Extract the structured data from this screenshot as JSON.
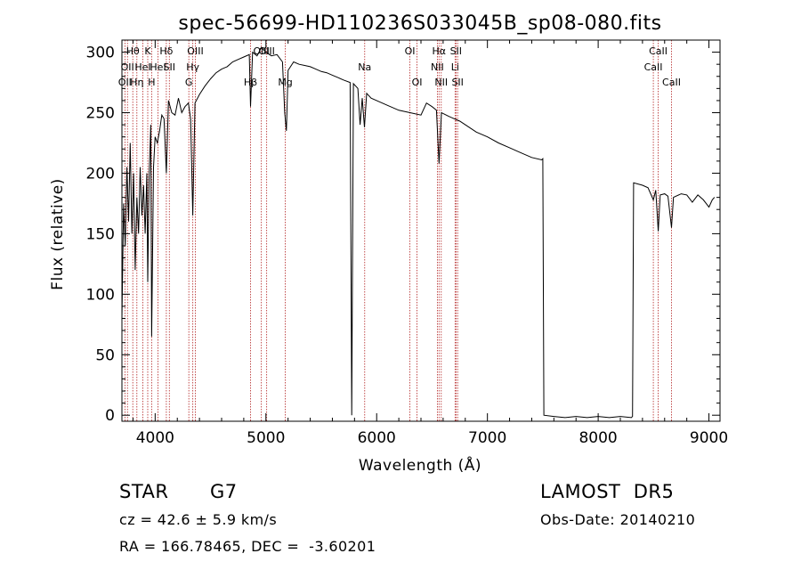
{
  "chart_data": {
    "type": "line",
    "title": "spec-56699-HD110236S033045B_sp08-080.fits",
    "xlabel": "Wavelength (Å)",
    "ylabel": "Flux (relative)",
    "xlim": [
      3700,
      9100
    ],
    "ylim": [
      -5,
      310
    ],
    "xticks": [
      4000,
      5000,
      6000,
      7000,
      8000,
      9000
    ],
    "xtick_labels": [
      "4000",
      "5000",
      "6000",
      "7000",
      "8000",
      "9000"
    ],
    "yticks": [
      0,
      50,
      100,
      150,
      200,
      250,
      300
    ],
    "ytick_labels": [
      "0",
      "50",
      "100",
      "150",
      "200",
      "250",
      "300"
    ],
    "grid": false,
    "line_color": "#000000",
    "marker_color": "#b22222",
    "series": [
      {
        "values": [
          [
            3700,
            80
          ],
          [
            3715,
            175
          ],
          [
            3730,
            140
          ],
          [
            3745,
            205
          ],
          [
            3760,
            160
          ],
          [
            3775,
            225
          ],
          [
            3790,
            150
          ],
          [
            3805,
            200
          ],
          [
            3820,
            120
          ],
          [
            3835,
            180
          ],
          [
            3850,
            150
          ],
          [
            3865,
            205
          ],
          [
            3880,
            165
          ],
          [
            3895,
            190
          ],
          [
            3910,
            150
          ],
          [
            3925,
            200
          ],
          [
            3933,
            110
          ],
          [
            3945,
            195
          ],
          [
            3960,
            240
          ],
          [
            3968,
            65
          ],
          [
            3985,
            205
          ],
          [
            4000,
            230
          ],
          [
            4020,
            225
          ],
          [
            4040,
            235
          ],
          [
            4060,
            248
          ],
          [
            4080,
            245
          ],
          [
            4101,
            200
          ],
          [
            4120,
            260
          ],
          [
            4150,
            250
          ],
          [
            4180,
            248
          ],
          [
            4210,
            262
          ],
          [
            4240,
            250
          ],
          [
            4270,
            255
          ],
          [
            4300,
            258
          ],
          [
            4320,
            245
          ],
          [
            4340,
            165
          ],
          [
            4360,
            258
          ],
          [
            4400,
            265
          ],
          [
            4450,
            272
          ],
          [
            4500,
            278
          ],
          [
            4550,
            283
          ],
          [
            4600,
            286
          ],
          [
            4650,
            288
          ],
          [
            4700,
            292
          ],
          [
            4750,
            294
          ],
          [
            4800,
            296
          ],
          [
            4850,
            298
          ],
          [
            4861,
            255
          ],
          [
            4880,
            300
          ],
          [
            4920,
            297
          ],
          [
            4960,
            304
          ],
          [
            5000,
            300
          ],
          [
            5050,
            297
          ],
          [
            5100,
            298
          ],
          [
            5150,
            292
          ],
          [
            5170,
            250
          ],
          [
            5185,
            235
          ],
          [
            5200,
            285
          ],
          [
            5250,
            292
          ],
          [
            5300,
            290
          ],
          [
            5350,
            289
          ],
          [
            5400,
            288
          ],
          [
            5450,
            286
          ],
          [
            5500,
            284
          ],
          [
            5550,
            283
          ],
          [
            5600,
            281
          ],
          [
            5650,
            279
          ],
          [
            5700,
            277
          ],
          [
            5760,
            275
          ],
          [
            5775,
            0
          ],
          [
            5790,
            274
          ],
          [
            5830,
            270
          ],
          [
            5850,
            240
          ],
          [
            5870,
            262
          ],
          [
            5890,
            238
          ],
          [
            5910,
            266
          ],
          [
            5950,
            262
          ],
          [
            6000,
            260
          ],
          [
            6100,
            256
          ],
          [
            6200,
            252
          ],
          [
            6300,
            250
          ],
          [
            6400,
            248
          ],
          [
            6450,
            258
          ],
          [
            6500,
            255
          ],
          [
            6540,
            252
          ],
          [
            6563,
            208
          ],
          [
            6585,
            250
          ],
          [
            6650,
            247
          ],
          [
            6700,
            245
          ],
          [
            6750,
            243
          ],
          [
            6800,
            240
          ],
          [
            6900,
            234
          ],
          [
            7000,
            230
          ],
          [
            7100,
            225
          ],
          [
            7200,
            221
          ],
          [
            7300,
            217
          ],
          [
            7400,
            213
          ],
          [
            7490,
            211
          ],
          [
            7500,
            212
          ],
          [
            7510,
            0
          ],
          [
            7600,
            -1
          ],
          [
            7700,
            -2
          ],
          [
            7800,
            -1
          ],
          [
            7900,
            -2
          ],
          [
            8000,
            -1
          ],
          [
            8100,
            -2
          ],
          [
            8200,
            -1
          ],
          [
            8300,
            -2
          ],
          [
            8310,
            -1
          ],
          [
            8320,
            192
          ],
          [
            8400,
            190
          ],
          [
            8450,
            188
          ],
          [
            8498,
            178
          ],
          [
            8520,
            186
          ],
          [
            8542,
            152
          ],
          [
            8560,
            182
          ],
          [
            8600,
            183
          ],
          [
            8630,
            181
          ],
          [
            8662,
            155
          ],
          [
            8680,
            180
          ],
          [
            8750,
            183
          ],
          [
            8800,
            182
          ],
          [
            8850,
            176
          ],
          [
            8900,
            182
          ],
          [
            8950,
            178
          ],
          [
            9000,
            172
          ],
          [
            9030,
            178
          ],
          [
            9050,
            180
          ]
        ]
      }
    ],
    "lines": [
      {
        "wave": 3727,
        "label": "OII",
        "row": 2
      },
      {
        "wave": 3750,
        "label": "OII",
        "row": 1
      },
      {
        "wave": 3798,
        "label": "Hθ",
        "row": 0
      },
      {
        "wave": 3835,
        "label": "Hη",
        "row": 2
      },
      {
        "wave": 3889,
        "label": "HeI",
        "row": 1
      },
      {
        "wave": 3933,
        "label": "K",
        "row": 0
      },
      {
        "wave": 3968,
        "label": "H",
        "row": 2
      },
      {
        "wave": 4026,
        "label": "HeI",
        "row": 1
      },
      {
        "wave": 4101,
        "label": "Hδ",
        "row": 0
      },
      {
        "wave": 4128,
        "label": "SII",
        "row": 1
      },
      {
        "wave": 4304,
        "label": "G",
        "row": 2
      },
      {
        "wave": 4340,
        "label": "Hγ",
        "row": 1
      },
      {
        "wave": 4363,
        "label": "OIII",
        "row": 0
      },
      {
        "wave": 4861,
        "label": "Hβ",
        "row": 2
      },
      {
        "wave": 4959,
        "label": "OIII",
        "row": 0
      },
      {
        "wave": 5007,
        "label": "OIII",
        "row": 0
      },
      {
        "wave": 5175,
        "label": "Mg",
        "row": 2
      },
      {
        "wave": 5892,
        "label": "Na",
        "row": 1
      },
      {
        "wave": 6300,
        "label": "OI",
        "row": 0
      },
      {
        "wave": 6364,
        "label": "OI",
        "row": 2
      },
      {
        "wave": 6548,
        "label": "NII",
        "row": 1
      },
      {
        "wave": 6563,
        "label": "Hα",
        "row": 0
      },
      {
        "wave": 6583,
        "label": "NII",
        "row": 2
      },
      {
        "wave": 6708,
        "label": "Li",
        "row": 1
      },
      {
        "wave": 6716,
        "label": "SII",
        "row": 0
      },
      {
        "wave": 6731,
        "label": "SII",
        "row": 2
      },
      {
        "wave": 8498,
        "label": "CaII",
        "row": 1
      },
      {
        "wave": 8542,
        "label": "CaII",
        "row": 0
      },
      {
        "wave": 8662,
        "label": "CaII",
        "row": 2
      }
    ]
  },
  "info": {
    "object_class": "STAR",
    "subclass": "G7",
    "survey": "LAMOST  DR5",
    "redshift": "cz = 42.6 ± 5.9 km/s",
    "obs_date": "Obs-Date: 20140210",
    "coords": "RA = 166.78465, DEC =  -3.60201"
  }
}
